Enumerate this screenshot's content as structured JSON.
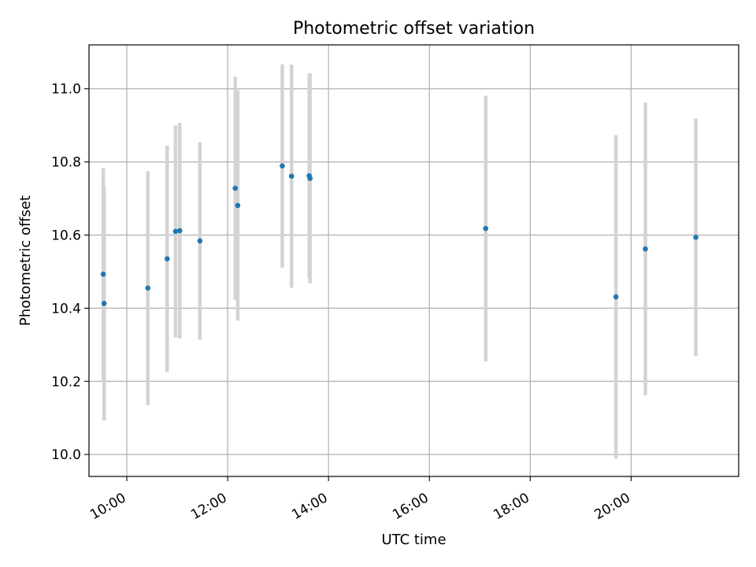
{
  "chart_data": {
    "type": "scatter",
    "title": "Photometric offset variation",
    "xlabel": "UTC time",
    "ylabel": "Photometric offset",
    "x_tick_labels": [
      "10:00",
      "12:00",
      "14:00",
      "16:00",
      "18:00",
      "20:00"
    ],
    "x_ticks": [
      "10:00",
      "12:00",
      "14:00",
      "16:00",
      "18:00",
      "20:00"
    ],
    "y_ticks": [
      10.0,
      10.2,
      10.4,
      10.6,
      10.8,
      11.0
    ],
    "y_tick_labels": [
      "10.0",
      "10.2",
      "10.4",
      "10.6",
      "10.8",
      "11.0"
    ],
    "xlim": [
      "09:15",
      "22:08"
    ],
    "ylim": [
      9.94,
      11.12
    ],
    "grid": true,
    "colors": {
      "points": "#1f77b4",
      "errorbars": "#d3d3d3"
    },
    "points": [
      {
        "x": "09:32",
        "y": 10.493,
        "yerr": 0.29
      },
      {
        "x": "09:33",
        "y": 10.413,
        "yerr": 0.32
      },
      {
        "x": "10:25",
        "y": 10.455,
        "yerr": 0.32
      },
      {
        "x": "10:48",
        "y": 10.535,
        "yerr": 0.31
      },
      {
        "x": "10:58",
        "y": 10.61,
        "yerr": 0.29
      },
      {
        "x": "11:03",
        "y": 10.612,
        "yerr": 0.295
      },
      {
        "x": "11:27",
        "y": 10.584,
        "yerr": 0.27
      },
      {
        "x": "12:09",
        "y": 10.728,
        "yerr": 0.305
      },
      {
        "x": "12:12",
        "y": 10.681,
        "yerr": 0.315
      },
      {
        "x": "13:05",
        "y": 10.789,
        "yerr": 0.278
      },
      {
        "x": "13:16",
        "y": 10.761,
        "yerr": 0.305
      },
      {
        "x": "13:37",
        "y": 10.762,
        "yerr": 0.28
      },
      {
        "x": "13:38",
        "y": 10.755,
        "yerr": 0.287
      },
      {
        "x": "17:07",
        "y": 10.618,
        "yerr": 0.363
      },
      {
        "x": "19:42",
        "y": 10.431,
        "yerr": 0.442
      },
      {
        "x": "20:17",
        "y": 10.562,
        "yerr": 0.4
      },
      {
        "x": "21:17",
        "y": 10.594,
        "yerr": 0.325
      }
    ]
  }
}
